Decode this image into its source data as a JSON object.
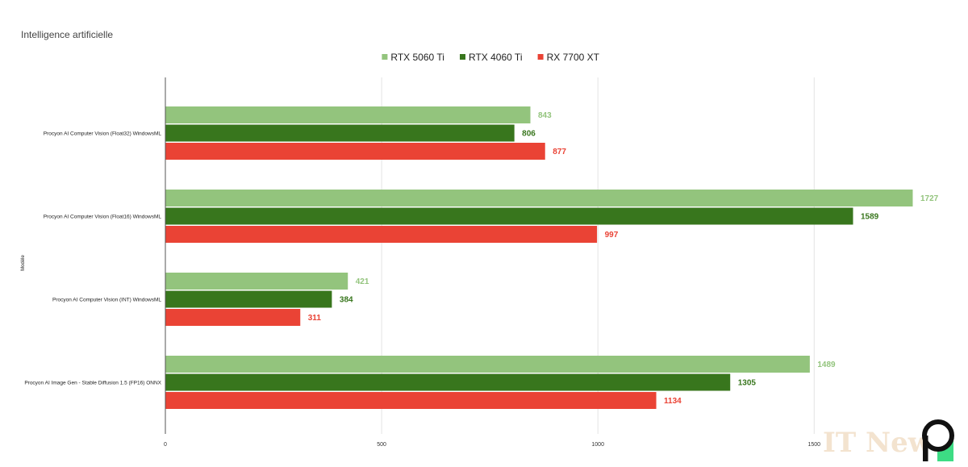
{
  "title": "Intelligence artificielle",
  "watermark": "IT News",
  "chart_data": {
    "type": "bar",
    "orientation": "horizontal",
    "title": "Intelligence artificielle",
    "xlabel": "",
    "ylabel": "Modèle",
    "xlim": [
      0,
      1727
    ],
    "xticks": [
      "0",
      "500",
      "1000",
      "1500"
    ],
    "grid": true,
    "legend_position": "top",
    "categories": [
      "Procyon AI Computer Vision (Float32) WindowsML",
      "Procyon AI Computer Vision (Float16) WindowsML",
      "Procyon AI Computer Vision (INT) WindowsML",
      "Procyon AI Image Gen - Stable Diffusion 1.5 (FP16) ONNX"
    ],
    "series": [
      {
        "name": "RTX 5060 Ti",
        "color": "#93c47d",
        "values": [
          843,
          1727,
          421,
          1489
        ]
      },
      {
        "name": "RTX 4060 Ti",
        "color": "#38761d",
        "values": [
          806,
          1589,
          384,
          1305
        ]
      },
      {
        "name": "RX 7700 XT",
        "color": "#ea4335",
        "values": [
          877,
          997,
          311,
          1134
        ]
      }
    ]
  }
}
